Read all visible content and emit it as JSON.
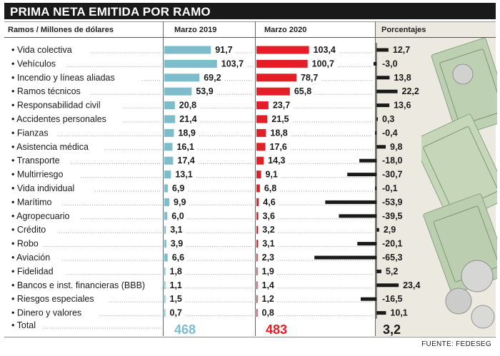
{
  "title": "PRIMA NETA EMITIDA POR RAMO",
  "headers": {
    "ramos": "Ramos  / Millones de dólares",
    "marzo_2019": "Marzo 2019",
    "marzo_2020": "Marzo 2020",
    "porcentajes": "Porcentajes"
  },
  "footer": "FUENTE: FEDESEG",
  "colors": {
    "series_2019": "#7cbccb",
    "series_2020": "#e31e26",
    "pct_bar": "#1a1a1a",
    "pct_background": "#ebe9e0"
  },
  "chart_data": {
    "type": "bar",
    "title": "PRIMA NETA EMITIDA POR RAMO",
    "unit": "Millones de dólares",
    "categories": [
      "Vida colectiva",
      "Vehículos",
      "Incendio y líneas aliadas",
      "Ramos técnicos",
      "Responsabilidad civil",
      "Accidentes personales",
      "Fianzas",
      "Asistencia médica",
      "Transporte",
      "Multirriesgo",
      "Vida individual",
      "Marítimo",
      "Agropecuario",
      "Crédito",
      "Robo",
      "Aviación",
      "Fidelidad",
      "Bancos e inst. financieras (BBB)",
      "Riesgos especiales",
      "Dinero y valores"
    ],
    "series": [
      {
        "name": "Marzo 2019",
        "values": [
          91.7,
          103.7,
          69.2,
          53.9,
          20.8,
          21.4,
          18.9,
          16.1,
          17.4,
          13.1,
          6.9,
          9.9,
          6.0,
          3.1,
          3.9,
          6.6,
          1.8,
          1.1,
          1.5,
          0.7
        ],
        "labels": [
          "91,7",
          "103,7",
          "69,2",
          "53,9",
          "20,8",
          "21,4",
          "18,9",
          "16,1",
          "17,4",
          "13,1",
          "6,9",
          "9,9",
          "6,0",
          "3,1",
          "3,9",
          "6,6",
          "1,8",
          "1,1",
          "1,5",
          "0,7"
        ]
      },
      {
        "name": "Marzo 2020",
        "values": [
          103.4,
          100.7,
          78.7,
          65.8,
          23.7,
          21.5,
          18.8,
          17.6,
          14.3,
          9.1,
          6.8,
          4.6,
          3.6,
          3.2,
          3.1,
          2.3,
          1.9,
          1.4,
          1.2,
          0.8
        ],
        "labels": [
          "103,4",
          "100,7",
          "78,7",
          "65,8",
          "23,7",
          "21,5",
          "18,8",
          "17,6",
          "14,3",
          "9,1",
          "6,8",
          "4,6",
          "3,6",
          "3,2",
          "3,1",
          "2,3",
          "1,9",
          "1,4",
          "1,2",
          "0,8"
        ]
      },
      {
        "name": "Porcentajes",
        "values": [
          12.7,
          -3.0,
          13.8,
          22.2,
          13.6,
          0.3,
          -0.4,
          9.8,
          -18.0,
          -30.7,
          -0.1,
          -53.9,
          -39.5,
          2.9,
          -20.1,
          -65.3,
          5.2,
          23.4,
          -16.5,
          10.1
        ],
        "labels": [
          "12,7",
          "-3,0",
          "13,8",
          "22,2",
          "13,6",
          "0,3",
          "-0,4",
          "9,8",
          "-18,0",
          "-30,7",
          "-0,1",
          "-53,9",
          "-39,5",
          "2,9",
          "-20,1",
          "-65,3",
          "5,2",
          "23,4",
          "-16,5",
          "10,1"
        ]
      }
    ],
    "xlim_values": [
      0,
      110
    ],
    "xlim_percent": [
      -70,
      30
    ],
    "total": {
      "label": "Total",
      "marzo_2019": "468",
      "marzo_2020": "483",
      "porcentaje": "3,2"
    }
  }
}
